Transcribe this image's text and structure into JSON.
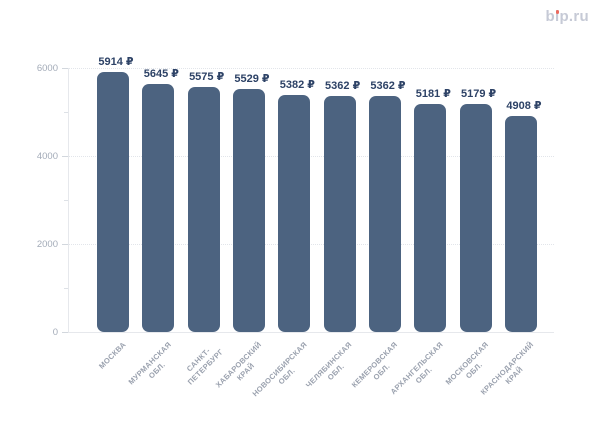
{
  "branding": {
    "logo_text": "bip.ru",
    "logo_color": "#c6cad6",
    "logo_dot_color": "#ed6a5e"
  },
  "chart_data": {
    "type": "bar",
    "title": "",
    "xlabel": "",
    "ylabel": "",
    "categories": [
      "МОСКВА",
      "МУРМАНСКАЯ\nОБЛ.",
      "САНКТ-\nПЕТЕРБУРГ",
      "ХАБАРОВСКИЙ\nКРАЙ",
      "НОВОСИБИРСКАЯ\nОБЛ.",
      "ЧЕЛЯБИНСКАЯ\nОБЛ.",
      "КЕМЕРОВСКАЯ\nОБЛ.",
      "АРХАНГЕЛЬСКАЯ\nОБЛ.",
      "МОСКОВСКАЯ\nОБЛ.",
      "КРАСНОДАРСКИЙ\nКРАЙ"
    ],
    "values": [
      5914,
      5645,
      5575,
      5529,
      5382,
      5362,
      5362,
      5181,
      5179,
      4908
    ],
    "value_suffix": "₽",
    "value_labels": [
      "5914 ₽",
      "5645 ₽",
      "5575 ₽",
      "5529 ₽",
      "5382 ₽",
      "5362 ₽",
      "5362 ₽",
      "5181 ₽",
      "5179 ₽",
      "4908 ₽"
    ],
    "ylim": [
      0,
      6000
    ],
    "yticks": [
      0,
      2000,
      4000,
      6000
    ],
    "minor_yticks": [
      1000,
      3000,
      5000
    ],
    "grid": "horizontal-dotted-at-major-ticks",
    "legend": "none",
    "colors": {
      "bar": "#4c6380",
      "value_label": "#2d4266",
      "category_label": "#9aa1ae",
      "ytick_label": "#a3abb8",
      "axis_line": "#e6e8ec",
      "gridline": "#e2e5ea"
    }
  }
}
